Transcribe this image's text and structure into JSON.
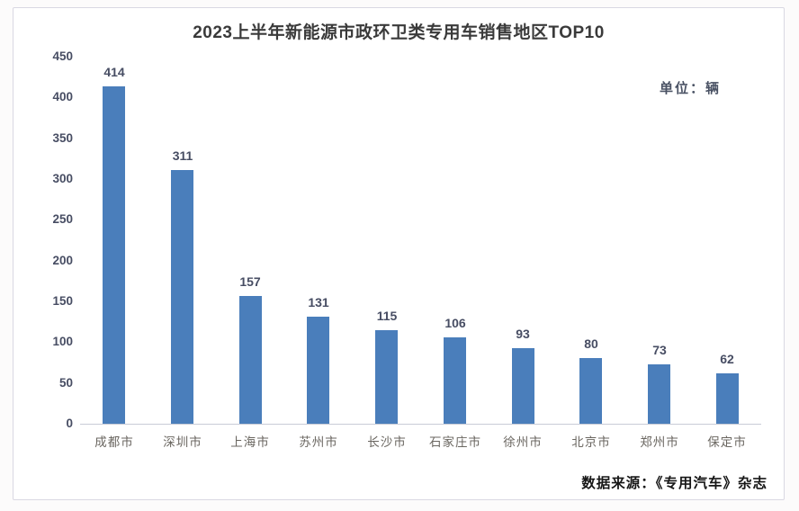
{
  "page": {
    "title": "2023上半年新能源市政环卫类专用车销售地区TOP10",
    "unit_label": "单位：辆",
    "source_label": "数据来源：《专用汽车》杂志"
  },
  "colors": {
    "bar": "#4a7ebb",
    "title_text": "#3a3a3a",
    "axis_text": "#474d63",
    "category_text": "#6a6660",
    "source_text": "#161616",
    "card_border": "#d9d8e2",
    "axis_line": "#c9ccd6"
  },
  "chart_data": {
    "type": "bar",
    "title": "2023上半年新能源市政环卫类专用车销售地区TOP10",
    "unit": "单位：辆",
    "source": "数据来源：《专用汽车》杂志",
    "categories": [
      "成都市",
      "深圳市",
      "上海市",
      "苏州市",
      "长沙市",
      "石家庄市",
      "徐州市",
      "北京市",
      "郑州市",
      "保定市"
    ],
    "values": [
      414,
      311,
      157,
      131,
      115,
      106,
      93,
      80,
      73,
      62
    ],
    "data_labels": true,
    "ylabel": "",
    "xlabel": "",
    "ylim": [
      0,
      450
    ],
    "yticks": [
      0,
      50,
      100,
      150,
      200,
      250,
      300,
      350,
      400,
      450
    ],
    "grid": false,
    "legend": "none",
    "bar_color": "#4a7ebb"
  }
}
